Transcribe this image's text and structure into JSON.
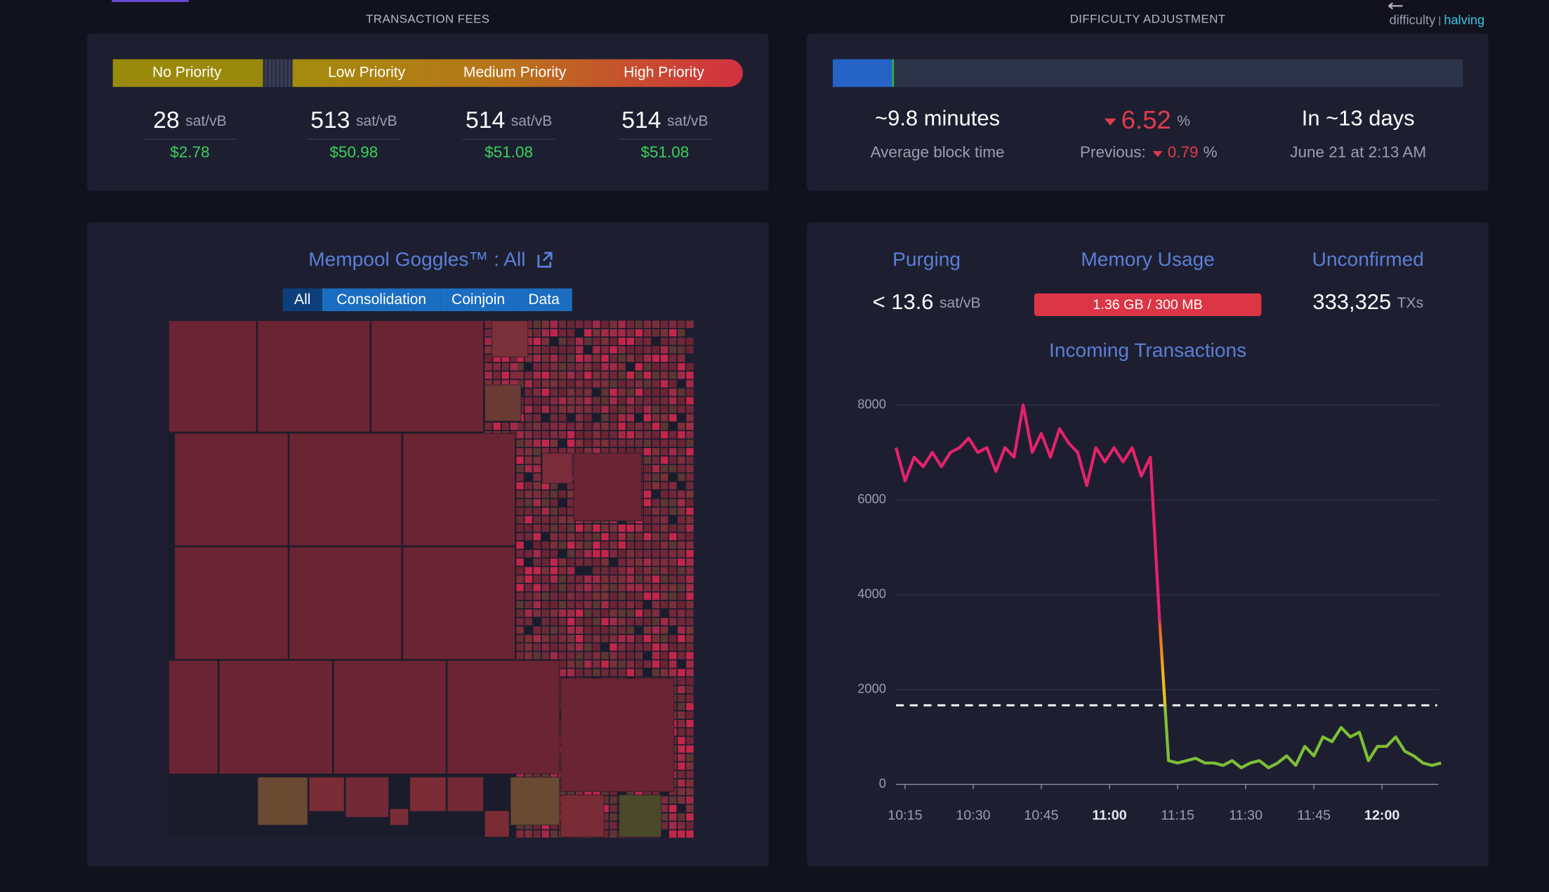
{
  "header": {
    "tx_fees": "TRANSACTION FEES",
    "difficulty_adjustment": "DIFFICULTY ADJUSTMENT",
    "toggle_difficulty": "difficulty",
    "toggle_sep": "|",
    "toggle_halving": "halving"
  },
  "fees": {
    "priorities": [
      "No Priority",
      "Low Priority",
      "Medium Priority",
      "High Priority"
    ],
    "rates": [
      28,
      513,
      514,
      514
    ],
    "unit": "sat/vB",
    "usd": [
      "$2.78",
      "$50.98",
      "$51.08",
      "$51.08"
    ]
  },
  "difficulty": {
    "progress_percent": 9.4,
    "avg_time": "~9.8 minutes",
    "avg_label": "Average block time",
    "change": 6.52,
    "change_unit": "%",
    "previous_label": "Previous:",
    "previous": 0.79,
    "previous_unit": "%",
    "eta": "In ~13 days",
    "eta_date": "June 21 at 2:13 AM"
  },
  "goggles": {
    "title": "Mempool Goggles™ : All",
    "filters": [
      "All",
      "Consolidation",
      "Coinjoin",
      "Data"
    ]
  },
  "mempool": {
    "purging_label": "Purging",
    "purging": "< 13.6",
    "purging_unit": "sat/vB",
    "memory_label": "Memory Usage",
    "memory": "1.36 GB / 300 MB",
    "unconfirmed_label": "Unconfirmed",
    "unconfirmed": "333,325",
    "unconfirmed_unit": "TXs"
  },
  "chart_data": {
    "type": "line",
    "title": "Incoming Transactions",
    "x": [
      "10:13",
      "10:15",
      "10:17",
      "10:19",
      "10:21",
      "10:23",
      "10:25",
      "10:27",
      "10:29",
      "10:31",
      "10:33",
      "10:35",
      "10:37",
      "10:39",
      "10:41",
      "10:43",
      "10:45",
      "10:47",
      "10:49",
      "10:51",
      "10:53",
      "10:55",
      "10:57",
      "10:59",
      "11:01",
      "11:03",
      "11:05",
      "11:07",
      "11:09",
      "11:11",
      "11:13",
      "11:15",
      "11:17",
      "11:19",
      "11:21",
      "11:23",
      "11:25",
      "11:27",
      "11:29",
      "11:31",
      "11:33",
      "11:35",
      "11:37",
      "11:39",
      "11:41",
      "11:43",
      "11:45",
      "11:47",
      "11:49",
      "11:51",
      "11:53",
      "11:55",
      "11:57",
      "11:59",
      "12:01",
      "12:03",
      "12:05",
      "12:07",
      "12:09",
      "12:11",
      "12:13"
    ],
    "values": [
      7100,
      6400,
      6900,
      6700,
      7000,
      6700,
      7000,
      7100,
      7300,
      7000,
      7100,
      6600,
      7100,
      6900,
      8000,
      7000,
      7400,
      6900,
      7500,
      7200,
      7000,
      6300,
      7100,
      6800,
      7100,
      6800,
      7100,
      6500,
      6900,
      3500,
      500,
      450,
      500,
      550,
      450,
      450,
      400,
      500,
      350,
      450,
      500,
      350,
      450,
      600,
      400,
      800,
      600,
      1000,
      900,
      1200,
      1000,
      1100,
      500,
      800,
      800,
      1000,
      700,
      600,
      450,
      400,
      450
    ],
    "threshold": 1667,
    "xlim": [
      "10:13",
      "12:13"
    ],
    "xticks": [
      "10:15",
      "10:30",
      "10:45",
      "11:00",
      "11:15",
      "11:30",
      "11:45",
      "12:00"
    ],
    "ylim": [
      0,
      8000
    ],
    "yticks": [
      0,
      2000,
      4000,
      6000,
      8000
    ],
    "grid": true
  }
}
